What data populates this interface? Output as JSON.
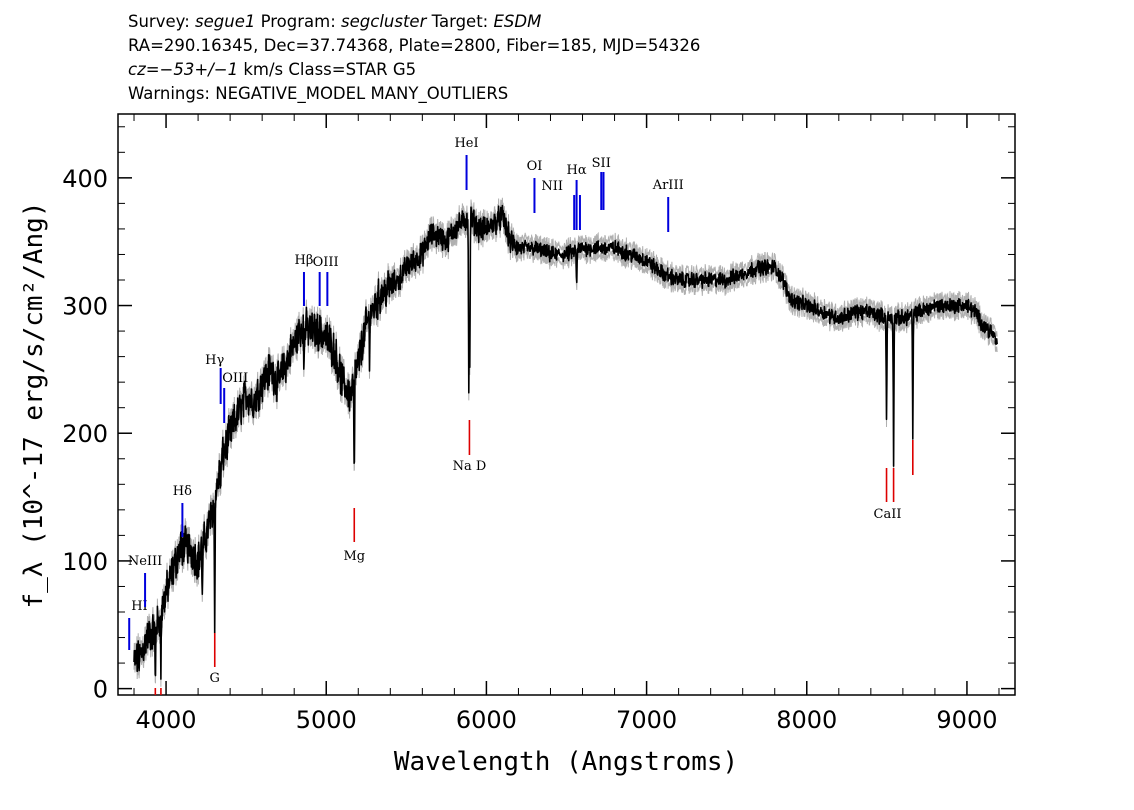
{
  "header": {
    "survey_label": "Survey:",
    "survey": "segue1",
    "program_label": "Program:",
    "program": "segcluster",
    "target_label": "Target:",
    "target": "ESDM",
    "line2": "RA=290.16345, Dec=37.74368, Plate=2800, Fiber=185, MJD=54326",
    "cz": "cz=−53+/−1",
    "cz_rest": " km/s Class=STAR G5",
    "warnings": "Warnings: NEGATIVE_MODEL MANY_OUTLIERS"
  },
  "colors": {
    "emission": "#0000dd",
    "absorption": "#dd0000",
    "spectrum": "#000000",
    "error": "#b0b0b0"
  },
  "chart_data": {
    "type": "line",
    "xlabel": "Wavelength (Angstroms)",
    "ylabel": "f_λ (10^-17 erg/s/cm²/Ang)",
    "xlim": [
      3700,
      9300
    ],
    "ylim": [
      -5,
      450
    ],
    "xticks": [
      4000,
      5000,
      6000,
      7000,
      8000,
      9000
    ],
    "yticks": [
      0,
      100,
      200,
      300,
      400
    ],
    "xtick_labels": [
      "4000",
      "5000",
      "6000",
      "7000",
      "8000",
      "9000"
    ],
    "ytick_labels": [
      "0",
      "100",
      "200",
      "300",
      "400"
    ],
    "grid": false,
    "series": [
      {
        "x": [
          3800,
          3840,
          3880,
          3920,
          3960,
          4000,
          4050,
          4100,
          4150,
          4200,
          4250,
          4300,
          4350,
          4400,
          4450,
          4500,
          4550,
          4600,
          4650,
          4700,
          4750,
          4800,
          4850,
          4900,
          4950,
          5000,
          5050,
          5100,
          5150,
          5200,
          5250,
          5300,
          5350,
          5400,
          5450,
          5500,
          5550,
          5600,
          5650,
          5700,
          5750,
          5800,
          5850,
          5900,
          5950,
          6000,
          6050,
          6100,
          6150,
          6200,
          6300,
          6400,
          6500,
          6600,
          6700,
          6800,
          6900,
          7000,
          7100,
          7200,
          7300,
          7400,
          7500,
          7600,
          7700,
          7800,
          7850,
          7900,
          8000,
          8100,
          8200,
          8300,
          8400,
          8500,
          8600,
          8700,
          8800,
          8900,
          9000,
          9050,
          9100,
          9150,
          9190
        ],
        "y": [
          20,
          25,
          40,
          45,
          55,
          75,
          95,
          115,
          110,
          100,
          120,
          145,
          180,
          200,
          215,
          230,
          225,
          240,
          250,
          240,
          255,
          270,
          285,
          280,
          280,
          275,
          265,
          240,
          230,
          255,
          285,
          300,
          310,
          315,
          320,
          330,
          335,
          340,
          355,
          355,
          350,
          360,
          365,
          370,
          360,
          360,
          365,
          370,
          350,
          345,
          345,
          340,
          340,
          345,
          345,
          345,
          340,
          335,
          325,
          320,
          320,
          320,
          320,
          325,
          330,
          330,
          320,
          305,
          300,
          295,
          290,
          295,
          295,
          290,
          290,
          295,
          300,
          300,
          300,
          295,
          285,
          280,
          270
        ]
      }
    ],
    "emission_lines": [
      {
        "label": "HI",
        "x": 3770
      },
      {
        "label": "NeIII",
        "x": 3869
      },
      {
        "label": "Hδ",
        "x": 4102
      },
      {
        "label": "Hγ",
        "x": 4341
      },
      {
        "label": "OIII",
        "x": 4363
      },
      {
        "label": "Hβ",
        "x": 4861
      },
      {
        "label": "OIII",
        "x": 4959
      },
      {
        "label": "OIII",
        "x": 5007
      },
      {
        "label": "HeI",
        "x": 5876
      },
      {
        "label": "OI",
        "x": 6300
      },
      {
        "label": "NII",
        "x": 6548
      },
      {
        "label": "Hα",
        "x": 6563
      },
      {
        "label": "NII",
        "x": 6584
      },
      {
        "label": "SII",
        "x": 6717
      },
      {
        "label": "SII",
        "x": 6731
      },
      {
        "label": "ArIII",
        "x": 7135
      }
    ],
    "absorption_lines": [
      {
        "label": "G",
        "x": 4304
      },
      {
        "label": "Mg",
        "x": 5175
      },
      {
        "label": "Na D",
        "x": 5894
      },
      {
        "label": "CaII",
        "x": 8498
      },
      {
        "label": "CaII",
        "x": 8542
      },
      {
        "label": "CaII",
        "x": 8662
      }
    ]
  }
}
